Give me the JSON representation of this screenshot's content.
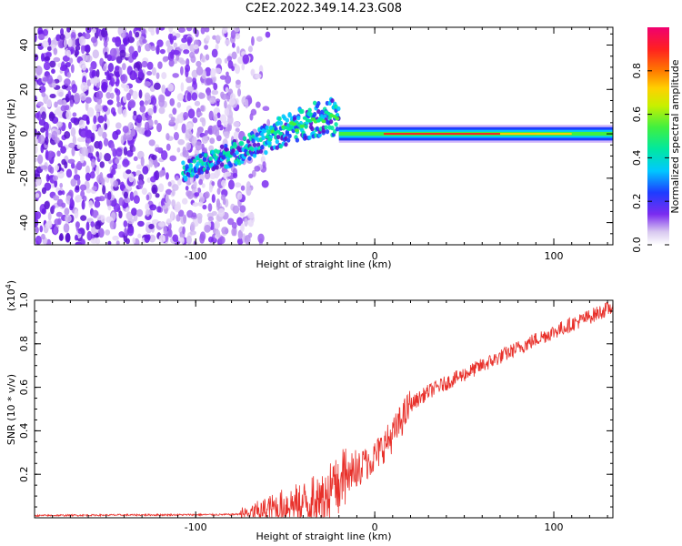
{
  "title": "C2E2.2022.349.14.23.G08",
  "chart_data": [
    {
      "type": "heatmap",
      "xlabel": "Height of straight line (km)",
      "ylabel": "Frequency (Hz)",
      "xlim": [
        -190,
        133
      ],
      "ylim": [
        -50,
        48
      ],
      "xticks": [
        -100,
        0,
        100
      ],
      "yticks": [
        -40,
        -20,
        0,
        20,
        40
      ],
      "xtick_labels": [
        "-100",
        "0",
        "100"
      ],
      "ytick_labels": [
        "-40",
        "-20",
        "0",
        "20",
        "40"
      ],
      "colorbar": {
        "label": "Normalized spectral amplitude",
        "range": [
          0,
          1
        ],
        "ticks": [
          0.0,
          0.2,
          0.4,
          0.6,
          0.8
        ],
        "tick_labels": [
          "0.0",
          "0.2",
          "0.4",
          "0.6",
          "0.8"
        ]
      },
      "features": {
        "noise_region_x": [
          -190,
          -75
        ],
        "signal_track": [
          {
            "x": -107,
            "y": -17
          },
          {
            "x": -90,
            "y": -12
          },
          {
            "x": -70,
            "y": -6
          },
          {
            "x": -55,
            "y": 0
          },
          {
            "x": -40,
            "y": 5
          },
          {
            "x": -25,
            "y": 8
          },
          {
            "x": -10,
            "y": 1
          },
          {
            "x": 0,
            "y": -2
          },
          {
            "x": 10,
            "y": 0
          },
          {
            "x": 133,
            "y": 0
          }
        ]
      }
    },
    {
      "type": "line",
      "xlabel": "Height of straight line (km)",
      "ylabel": "SNR (10 * v/v)",
      "yscale_label": "(x10",
      "yscale_exp": "4",
      "yscale_close": ")",
      "xlim": [
        -190,
        133
      ],
      "ylim": [
        0,
        1.0
      ],
      "xticks": [
        -100,
        0,
        100
      ],
      "yticks": [
        0.2,
        0.4,
        0.6,
        0.8,
        1.0
      ],
      "xtick_labels": [
        "-100",
        "0",
        "100"
      ],
      "ytick_labels": [
        "0.2",
        "0.4",
        "0.6",
        "0.8",
        "1.0"
      ],
      "series": [
        {
          "name": "SNR",
          "color": "#e8302a",
          "x": [
            -190,
            -160,
            -130,
            -100,
            -80,
            -70,
            -60,
            -50,
            -40,
            -30,
            -25,
            -20,
            -15,
            -10,
            0,
            10,
            20,
            30,
            50,
            70,
            90,
            110,
            133
          ],
          "y": [
            0.01,
            0.012,
            0.013,
            0.014,
            0.015,
            0.02,
            0.04,
            0.06,
            0.07,
            0.09,
            0.12,
            0.15,
            0.18,
            0.22,
            0.28,
            0.38,
            0.52,
            0.58,
            0.66,
            0.74,
            0.82,
            0.89,
            0.97
          ]
        }
      ]
    }
  ]
}
